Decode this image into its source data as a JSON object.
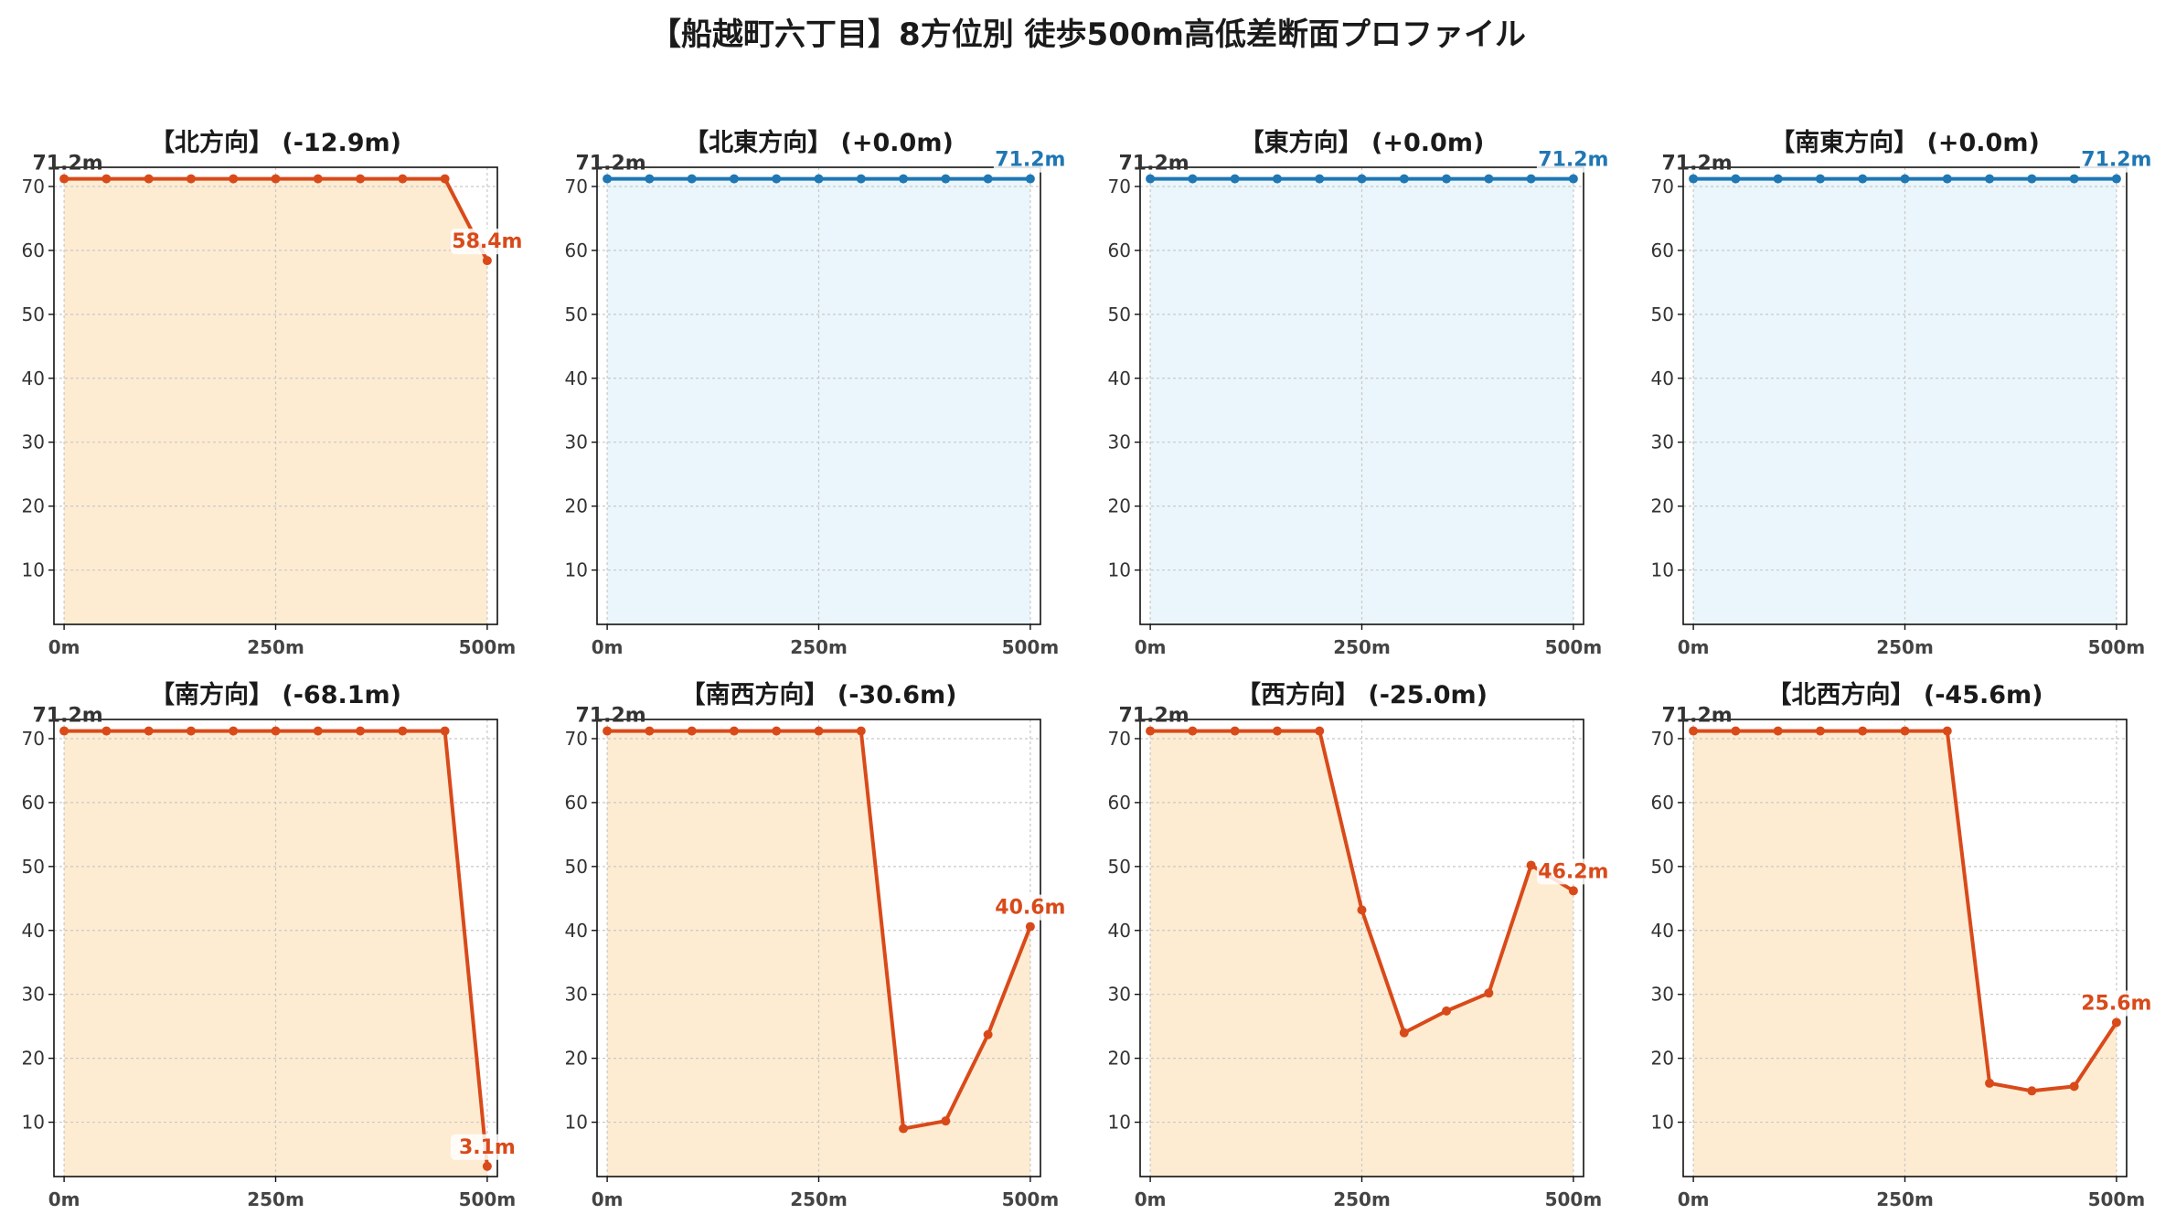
{
  "title": "【船越町六丁目】8方位別 徒歩500m高低差断面プロファイル",
  "colors": {
    "down": "#d94a1a",
    "down_fill": "#fdecd2",
    "flat": "#1f77b4",
    "flat_fill": "#eaf6fb"
  },
  "chart_data": [
    {
      "type": "area",
      "title": "【北方向】 (-12.9m)",
      "trend": "down",
      "x": [
        0,
        50,
        100,
        150,
        200,
        250,
        300,
        350,
        400,
        450,
        500
      ],
      "y": [
        71.2,
        71.2,
        71.2,
        71.2,
        71.2,
        71.2,
        71.2,
        71.2,
        71.2,
        71.2,
        58.4
      ],
      "start_label": "71.2m",
      "end_label": "58.4m",
      "xticks": [
        "0m",
        "250m",
        "500m"
      ],
      "yticks": [
        10,
        20,
        30,
        40,
        50,
        60,
        70
      ],
      "ylim": [
        1.5,
        73
      ],
      "grid": true
    },
    {
      "type": "area",
      "title": "【北東方向】 (+0.0m)",
      "trend": "flat",
      "x": [
        0,
        50,
        100,
        150,
        200,
        250,
        300,
        350,
        400,
        450,
        500
      ],
      "y": [
        71.2,
        71.2,
        71.2,
        71.2,
        71.2,
        71.2,
        71.2,
        71.2,
        71.2,
        71.2,
        71.2
      ],
      "start_label": "71.2m",
      "end_label": "71.2m",
      "xticks": [
        "0m",
        "250m",
        "500m"
      ],
      "yticks": [
        10,
        20,
        30,
        40,
        50,
        60,
        70
      ],
      "ylim": [
        1.5,
        73
      ],
      "grid": true
    },
    {
      "type": "area",
      "title": "【東方向】 (+0.0m)",
      "trend": "flat",
      "x": [
        0,
        50,
        100,
        150,
        200,
        250,
        300,
        350,
        400,
        450,
        500
      ],
      "y": [
        71.2,
        71.2,
        71.2,
        71.2,
        71.2,
        71.2,
        71.2,
        71.2,
        71.2,
        71.2,
        71.2
      ],
      "start_label": "71.2m",
      "end_label": "71.2m",
      "xticks": [
        "0m",
        "250m",
        "500m"
      ],
      "yticks": [
        10,
        20,
        30,
        40,
        50,
        60,
        70
      ],
      "ylim": [
        1.5,
        73
      ],
      "grid": true
    },
    {
      "type": "area",
      "title": "【南東方向】 (+0.0m)",
      "trend": "flat",
      "x": [
        0,
        50,
        100,
        150,
        200,
        250,
        300,
        350,
        400,
        450,
        500
      ],
      "y": [
        71.2,
        71.2,
        71.2,
        71.2,
        71.2,
        71.2,
        71.2,
        71.2,
        71.2,
        71.2,
        71.2
      ],
      "start_label": "71.2m",
      "end_label": "71.2m",
      "xticks": [
        "0m",
        "250m",
        "500m"
      ],
      "yticks": [
        10,
        20,
        30,
        40,
        50,
        60,
        70
      ],
      "ylim": [
        1.5,
        73
      ],
      "grid": true
    },
    {
      "type": "area",
      "title": "【南方向】 (-68.1m)",
      "trend": "down",
      "x": [
        0,
        50,
        100,
        150,
        200,
        250,
        300,
        350,
        400,
        450,
        500
      ],
      "y": [
        71.2,
        71.2,
        71.2,
        71.2,
        71.2,
        71.2,
        71.2,
        71.2,
        71.2,
        71.2,
        3.1
      ],
      "start_label": "71.2m",
      "end_label": "3.1m",
      "xticks": [
        "0m",
        "250m",
        "500m"
      ],
      "yticks": [
        10,
        20,
        30,
        40,
        50,
        60,
        70
      ],
      "ylim": [
        1.5,
        73
      ],
      "grid": true
    },
    {
      "type": "area",
      "title": "【南西方向】 (-30.6m)",
      "trend": "down",
      "x": [
        0,
        50,
        100,
        150,
        200,
        250,
        300,
        350,
        400,
        450,
        500
      ],
      "y": [
        71.2,
        71.2,
        71.2,
        71.2,
        71.2,
        71.2,
        71.2,
        9.0,
        10.2,
        23.7,
        40.6
      ],
      "start_label": "71.2m",
      "end_label": "40.6m",
      "xticks": [
        "0m",
        "250m",
        "500m"
      ],
      "yticks": [
        10,
        20,
        30,
        40,
        50,
        60,
        70
      ],
      "ylim": [
        1.5,
        73
      ],
      "grid": true
    },
    {
      "type": "area",
      "title": "【西方向】 (-25.0m)",
      "trend": "down",
      "x": [
        0,
        50,
        100,
        150,
        200,
        250,
        300,
        350,
        400,
        450,
        500
      ],
      "y": [
        71.2,
        71.2,
        71.2,
        71.2,
        71.2,
        43.2,
        24.0,
        27.4,
        30.2,
        50.2,
        46.2
      ],
      "start_label": "71.2m",
      "end_label": "46.2m",
      "xticks": [
        "0m",
        "250m",
        "500m"
      ],
      "yticks": [
        10,
        20,
        30,
        40,
        50,
        60,
        70
      ],
      "ylim": [
        1.5,
        73
      ],
      "grid": true
    },
    {
      "type": "area",
      "title": "【北西方向】 (-45.6m)",
      "trend": "down",
      "x": [
        0,
        50,
        100,
        150,
        200,
        250,
        300,
        350,
        400,
        450,
        500
      ],
      "y": [
        71.2,
        71.2,
        71.2,
        71.2,
        71.2,
        71.2,
        71.2,
        16.1,
        14.9,
        15.6,
        25.6
      ],
      "start_label": "71.2m",
      "end_label": "25.6m",
      "xticks": [
        "0m",
        "250m",
        "500m"
      ],
      "yticks": [
        10,
        20,
        30,
        40,
        50,
        60,
        70
      ],
      "ylim": [
        1.5,
        73
      ],
      "grid": true
    }
  ]
}
